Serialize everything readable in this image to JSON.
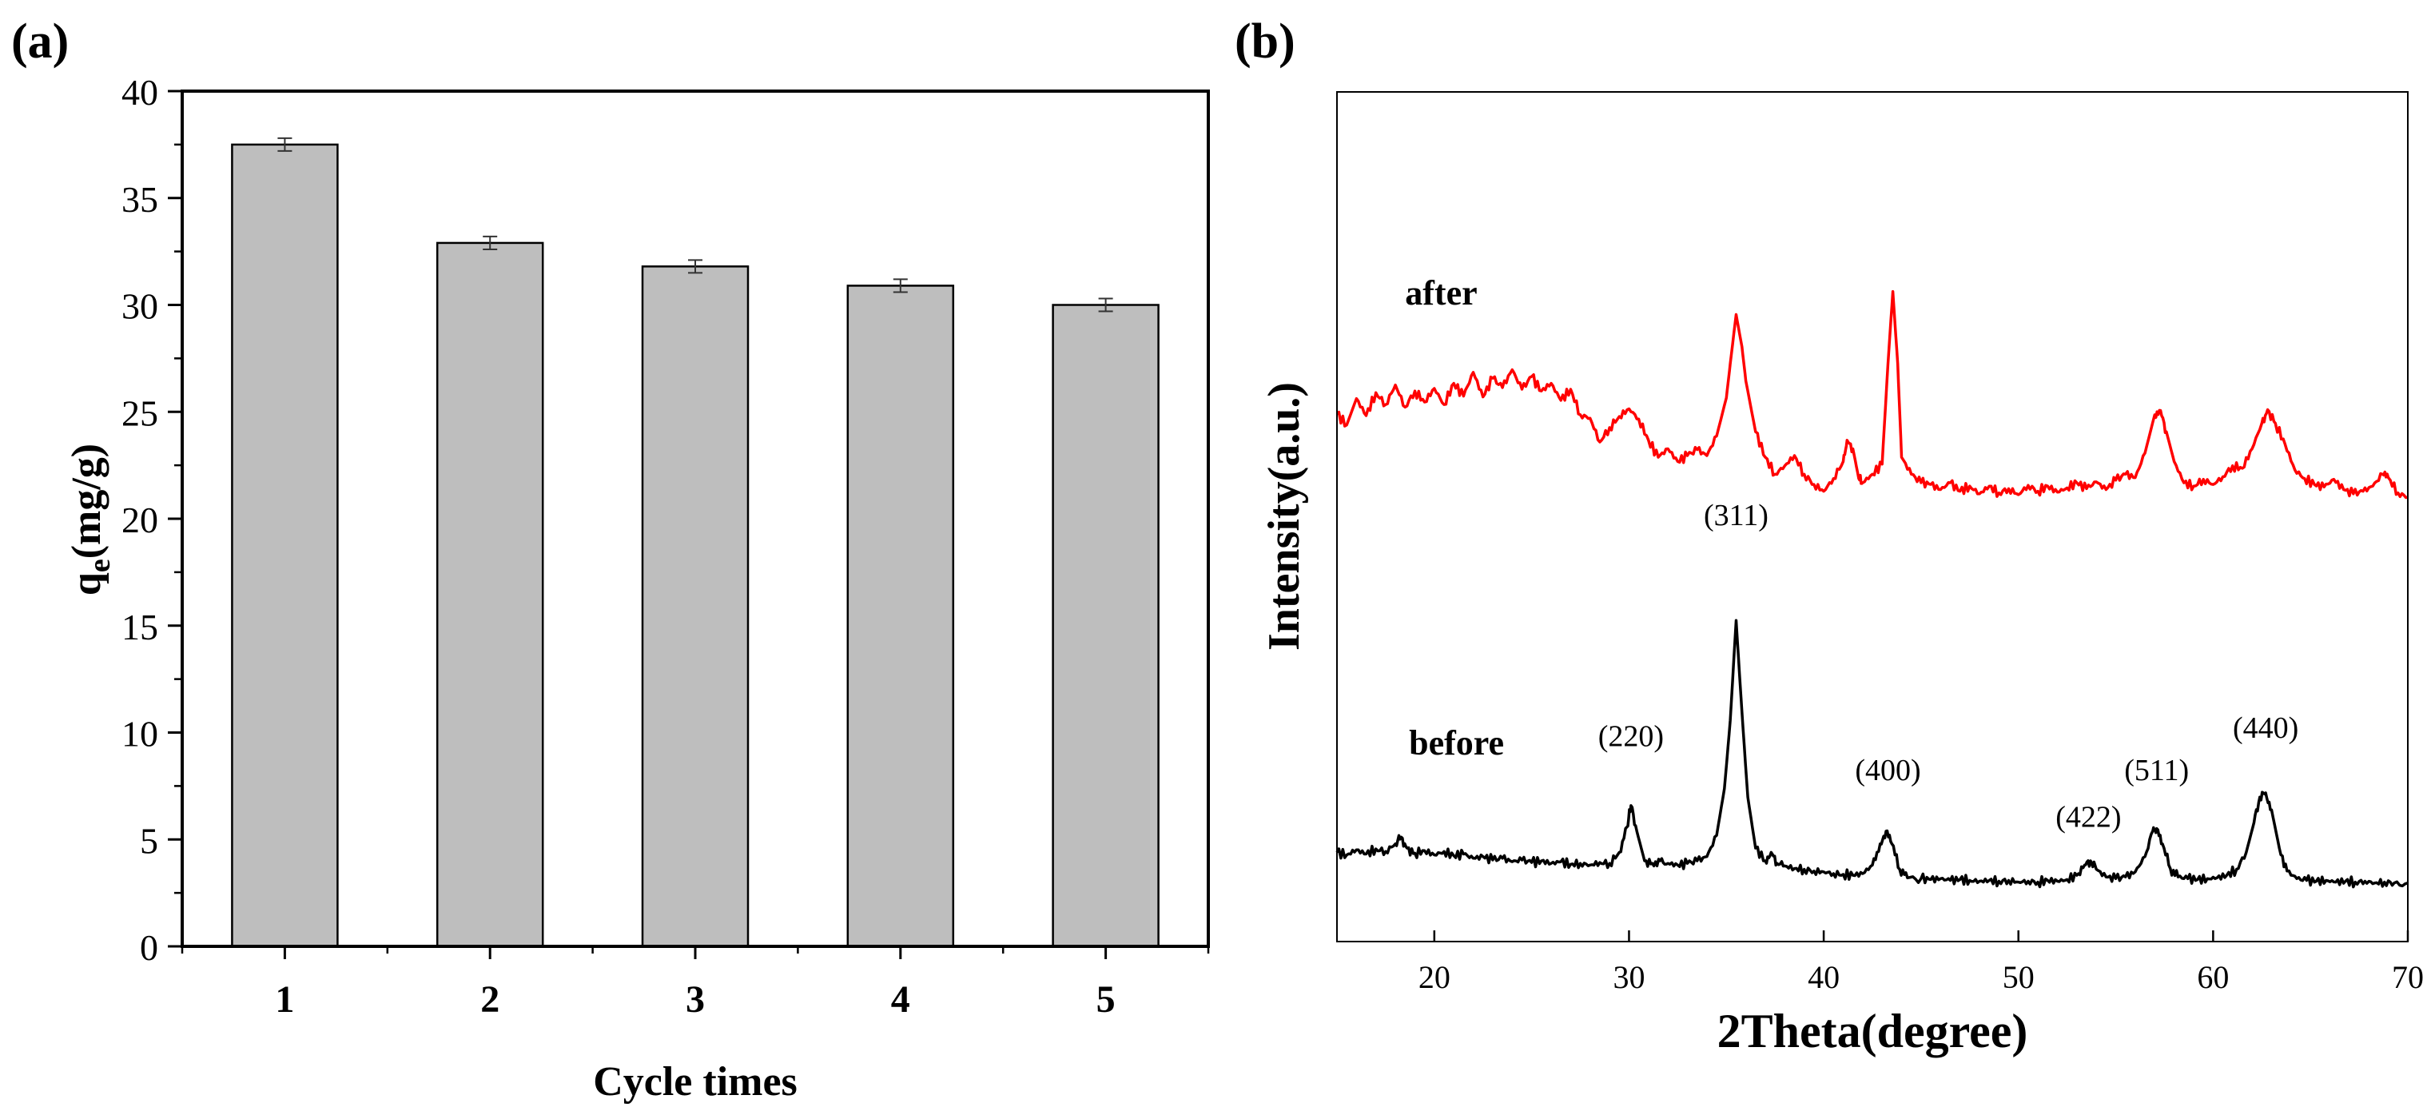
{
  "panel_a": {
    "label": "(a)"
  },
  "panel_b": {
    "label": "(b)"
  },
  "colors": {
    "bar_fill": "#bebebe",
    "after": "#ff0000",
    "before": "#000000",
    "axis": "#000000"
  },
  "chart_data": [
    {
      "id": "a",
      "type": "bar",
      "title": "",
      "xlabel": "Cycle times",
      "ylabel": "q_e(mg/g)",
      "ylabel_main": "q",
      "ylabel_sub": "e",
      "ylabel_rest": "(mg/g)",
      "categories": [
        "1",
        "2",
        "3",
        "4",
        "5"
      ],
      "values": [
        37.5,
        32.9,
        31.8,
        30.9,
        30.0
      ],
      "errors": [
        0.3,
        0.3,
        0.3,
        0.3,
        0.3
      ],
      "ylim": [
        0,
        40
      ],
      "yticks": [
        0,
        5,
        10,
        15,
        20,
        25,
        30,
        35,
        40
      ],
      "ytick_labels": [
        "0",
        "5",
        "10",
        "15",
        "20",
        "25",
        "30",
        "35",
        "40"
      ]
    },
    {
      "id": "b",
      "type": "line",
      "title": "",
      "xlabel": "2Theta(degree)",
      "ylabel": "Intensity(a.u.)",
      "xlim": [
        15,
        70
      ],
      "ylim": [
        0,
        100
      ],
      "xticks": [
        20,
        30,
        40,
        50,
        60,
        70
      ],
      "xtick_labels": [
        "20",
        "30",
        "40",
        "50",
        "60",
        "70"
      ],
      "series": [
        {
          "name": "after",
          "color": "#ff0000",
          "baseline": 50,
          "points": [
            [
              15.0,
              62.1
            ],
            [
              15.5,
              60.8
            ],
            [
              16.0,
              63.9
            ],
            [
              16.5,
              61.9
            ],
            [
              17.0,
              64.6
            ],
            [
              17.5,
              63.2
            ],
            [
              18.0,
              65.5
            ],
            [
              18.5,
              62.9
            ],
            [
              19.0,
              64.8
            ],
            [
              19.5,
              63.5
            ],
            [
              20.0,
              65.1
            ],
            [
              20.5,
              63.2
            ],
            [
              21.0,
              65.7
            ],
            [
              21.5,
              64.2
            ],
            [
              22.0,
              67.0
            ],
            [
              22.5,
              64.1
            ],
            [
              23.0,
              66.3
            ],
            [
              23.5,
              65.2
            ],
            [
              24.0,
              67.3
            ],
            [
              24.5,
              65.0
            ],
            [
              25.0,
              66.5
            ],
            [
              25.5,
              64.8
            ],
            [
              26.0,
              65.7
            ],
            [
              26.5,
              63.7
            ],
            [
              27.0,
              65.0
            ],
            [
              27.5,
              62.0
            ],
            [
              28.0,
              61.6
            ],
            [
              28.5,
              58.8
            ],
            [
              29.0,
              60.5
            ],
            [
              29.5,
              61.8
            ],
            [
              30.0,
              62.7
            ],
            [
              30.5,
              61.5
            ],
            [
              31.0,
              59.0
            ],
            [
              31.5,
              57.0
            ],
            [
              32.0,
              58.0
            ],
            [
              32.5,
              56.5
            ],
            [
              33.0,
              57.2
            ],
            [
              33.5,
              57.9
            ],
            [
              34.0,
              57.2
            ],
            [
              34.5,
              59.5
            ],
            [
              35.0,
              64.0
            ],
            [
              35.2,
              68.0
            ],
            [
              35.5,
              73.8
            ],
            [
              35.8,
              70.0
            ],
            [
              36.0,
              66.0
            ],
            [
              36.5,
              60.0
            ],
            [
              37.0,
              57.0
            ],
            [
              37.5,
              55.0
            ],
            [
              38.0,
              56.0
            ],
            [
              38.5,
              57.2
            ],
            [
              39.0,
              55.0
            ],
            [
              39.5,
              53.8
            ],
            [
              40.0,
              53.0
            ],
            [
              40.5,
              54.5
            ],
            [
              41.0,
              56.5
            ],
            [
              41.2,
              59.0
            ],
            [
              41.5,
              58.0
            ],
            [
              41.8,
              54.5
            ],
            [
              42.0,
              54.0
            ],
            [
              42.5,
              55.0
            ],
            [
              43.0,
              56.2
            ],
            [
              43.3,
              68.0
            ],
            [
              43.55,
              76.5
            ],
            [
              43.8,
              68.0
            ],
            [
              44.0,
              57.0
            ],
            [
              44.5,
              55.0
            ],
            [
              45.0,
              54.0
            ],
            [
              45.5,
              53.8
            ],
            [
              46.0,
              53.2
            ],
            [
              46.5,
              54.0
            ],
            [
              47.0,
              53.0
            ],
            [
              47.5,
              53.6
            ],
            [
              48.0,
              52.7
            ],
            [
              48.5,
              53.6
            ],
            [
              49.0,
              52.8
            ],
            [
              49.5,
              53.3
            ],
            [
              50.0,
              52.6
            ],
            [
              50.5,
              53.7
            ],
            [
              51.0,
              53.0
            ],
            [
              51.5,
              53.6
            ],
            [
              52.0,
              52.9
            ],
            [
              52.5,
              53.4
            ],
            [
              53.0,
              54.0
            ],
            [
              53.5,
              53.3
            ],
            [
              54.0,
              54.1
            ],
            [
              54.5,
              53.2
            ],
            [
              55.0,
              54.3
            ],
            [
              55.5,
              55.0
            ],
            [
              56.0,
              54.6
            ],
            [
              56.5,
              57.5
            ],
            [
              57.0,
              62.0
            ],
            [
              57.3,
              62.5
            ],
            [
              57.6,
              60.0
            ],
            [
              58.0,
              56.5
            ],
            [
              58.5,
              54.0
            ],
            [
              59.0,
              53.6
            ],
            [
              59.5,
              54.4
            ],
            [
              60.0,
              53.8
            ],
            [
              60.5,
              54.7
            ],
            [
              61.0,
              56.0
            ],
            [
              61.5,
              55.7
            ],
            [
              62.0,
              58.0
            ],
            [
              62.5,
              61.0
            ],
            [
              62.8,
              62.6
            ],
            [
              63.2,
              61.0
            ],
            [
              63.7,
              58.5
            ],
            [
              64.2,
              55.5
            ],
            [
              64.7,
              54.5
            ],
            [
              65.2,
              53.8
            ],
            [
              65.7,
              53.5
            ],
            [
              66.2,
              54.4
            ],
            [
              66.7,
              53.2
            ],
            [
              67.2,
              52.7
            ],
            [
              67.7,
              53.0
            ],
            [
              68.2,
              53.6
            ],
            [
              68.7,
              55.0
            ],
            [
              69.0,
              54.6
            ],
            [
              69.5,
              52.8
            ],
            [
              70.0,
              52.3
            ]
          ]
        },
        {
          "name": "before",
          "color": "#000000",
          "baseline": 10,
          "points": [
            [
              15.0,
              10.5
            ],
            [
              15.5,
              10.2
            ],
            [
              16.0,
              10.8
            ],
            [
              16.5,
              10.3
            ],
            [
              17.0,
              10.9
            ],
            [
              17.5,
              10.6
            ],
            [
              18.0,
              11.5
            ],
            [
              18.3,
              12.3
            ],
            [
              18.6,
              11.0
            ],
            [
              19.0,
              10.4
            ],
            [
              19.5,
              10.7
            ],
            [
              20.0,
              10.2
            ],
            [
              20.5,
              10.6
            ],
            [
              21.0,
              10.1
            ],
            [
              21.5,
              10.3
            ],
            [
              22.0,
              9.8
            ],
            [
              22.5,
              10.0
            ],
            [
              23.0,
              9.6
            ],
            [
              23.5,
              9.8
            ],
            [
              24.0,
              9.4
            ],
            [
              24.5,
              9.6
            ],
            [
              25.0,
              9.3
            ],
            [
              25.5,
              9.5
            ],
            [
              26.0,
              9.2
            ],
            [
              26.5,
              9.4
            ],
            [
              27.0,
              9.1
            ],
            [
              27.5,
              9.2
            ],
            [
              28.0,
              9.0
            ],
            [
              28.5,
              9.3
            ],
            [
              29.0,
              9.2
            ],
            [
              29.5,
              10.5
            ],
            [
              29.9,
              13.5
            ],
            [
              30.1,
              16.0
            ],
            [
              30.4,
              13.0
            ],
            [
              30.8,
              9.5
            ],
            [
              31.2,
              9.2
            ],
            [
              31.6,
              9.5
            ],
            [
              32.0,
              9.2
            ],
            [
              32.5,
              9.0
            ],
            [
              33.0,
              9.2
            ],
            [
              33.5,
              9.5
            ],
            [
              34.0,
              10.0
            ],
            [
              34.5,
              12.5
            ],
            [
              34.9,
              18.0
            ],
            [
              35.2,
              26.0
            ],
            [
              35.5,
              37.8
            ],
            [
              35.8,
              27.0
            ],
            [
              36.1,
              17.0
            ],
            [
              36.5,
              11.0
            ],
            [
              37.0,
              9.5
            ],
            [
              37.3,
              10.5
            ],
            [
              37.6,
              9.2
            ],
            [
              38.0,
              8.9
            ],
            [
              38.5,
              8.6
            ],
            [
              39.0,
              8.5
            ],
            [
              39.5,
              8.3
            ],
            [
              40.0,
              8.2
            ],
            [
              40.5,
              8.0
            ],
            [
              41.0,
              7.9
            ],
            [
              41.5,
              7.8
            ],
            [
              42.0,
              8.0
            ],
            [
              42.5,
              9.0
            ],
            [
              42.9,
              11.5
            ],
            [
              43.2,
              13.0
            ],
            [
              43.5,
              11.5
            ],
            [
              43.9,
              8.5
            ],
            [
              44.3,
              7.5
            ],
            [
              45.0,
              7.4
            ],
            [
              45.5,
              7.3
            ],
            [
              46.0,
              7.4
            ],
            [
              46.5,
              7.2
            ],
            [
              47.0,
              7.3
            ],
            [
              47.5,
              7.2
            ],
            [
              48.0,
              7.1
            ],
            [
              48.5,
              7.2
            ],
            [
              49.0,
              7.1
            ],
            [
              49.5,
              7.2
            ],
            [
              50.0,
              7.0
            ],
            [
              50.5,
              7.1
            ],
            [
              51.0,
              7.0
            ],
            [
              51.5,
              7.2
            ],
            [
              52.0,
              7.1
            ],
            [
              52.5,
              7.3
            ],
            [
              53.0,
              7.8
            ],
            [
              53.4,
              9.0
            ],
            [
              53.7,
              9.5
            ],
            [
              54.0,
              8.5
            ],
            [
              54.5,
              7.6
            ],
            [
              55.0,
              7.4
            ],
            [
              55.5,
              7.6
            ],
            [
              56.0,
              8.2
            ],
            [
              56.5,
              10.0
            ],
            [
              56.9,
              13.0
            ],
            [
              57.1,
              13.3
            ],
            [
              57.4,
              11.5
            ],
            [
              57.8,
              8.6
            ],
            [
              58.2,
              7.6
            ],
            [
              58.7,
              7.4
            ],
            [
              59.2,
              7.3
            ],
            [
              59.7,
              7.4
            ],
            [
              60.2,
              7.5
            ],
            [
              60.7,
              7.8
            ],
            [
              61.2,
              8.5
            ],
            [
              61.7,
              10.5
            ],
            [
              62.1,
              14.0
            ],
            [
              62.4,
              17.0
            ],
            [
              62.7,
              17.5
            ],
            [
              63.0,
              15.5
            ],
            [
              63.4,
              11.0
            ],
            [
              63.8,
              8.3
            ],
            [
              64.3,
              7.4
            ],
            [
              64.8,
              7.2
            ],
            [
              65.3,
              7.1
            ],
            [
              65.8,
              7.2
            ],
            [
              66.3,
              7.0
            ],
            [
              66.8,
              7.1
            ],
            [
              67.3,
              7.0
            ],
            [
              67.8,
              7.1
            ],
            [
              68.3,
              6.9
            ],
            [
              68.8,
              7.0
            ],
            [
              69.3,
              6.9
            ],
            [
              70.0,
              6.9
            ]
          ]
        }
      ],
      "annotations": [
        {
          "text": "after",
          "x": 18.5,
          "y": 75
        },
        {
          "text": "before",
          "x": 18.7,
          "y": 22
        },
        {
          "text": "(220)",
          "x": 30.1,
          "y": 23
        },
        {
          "text": "(311)",
          "x": 35.5,
          "y": 49
        },
        {
          "text": "(400)",
          "x": 43.3,
          "y": 19
        },
        {
          "text": "(422)",
          "x": 53.6,
          "y": 13.5
        },
        {
          "text": "(511)",
          "x": 57.1,
          "y": 19
        },
        {
          "text": "(440)",
          "x": 62.7,
          "y": 24
        }
      ]
    }
  ]
}
